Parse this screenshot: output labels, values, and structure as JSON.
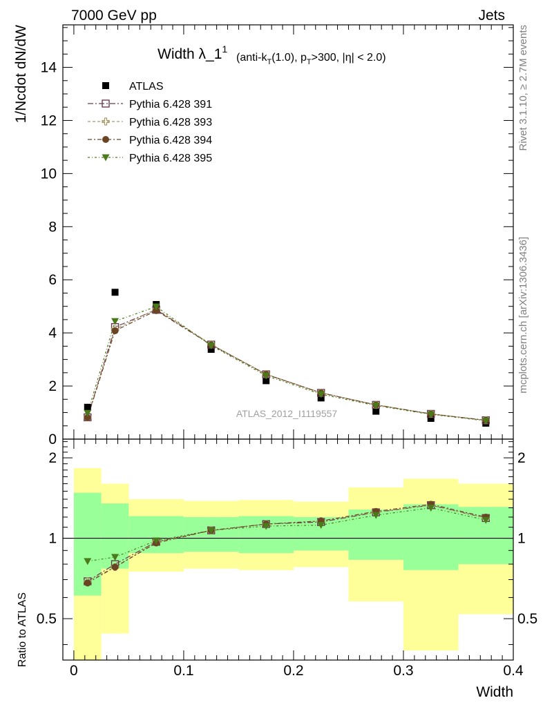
{
  "header": {
    "left": "7000 GeV pp",
    "right": "Jets"
  },
  "plot": {
    "title_main": "Width λ_1",
    "title_sup": "1",
    "title_rest": "(anti-k",
    "title_sub_t": "T",
    "title_rest2": "(1.0), p",
    "title_sub_t2": "T",
    "title_rest3": ">300, |η| < 2.0)",
    "watermark": "ATLAS_2012_I1119557",
    "side_top": "Rivet 3.1.10, ≥ 2.7M events",
    "side_bottom": "mcplots.cern.ch [arXiv:1306.3436]"
  },
  "colors": {
    "atlas": "#000000",
    "p391": "#6b3a4f",
    "p393": "#a89a6a",
    "p394": "#6b4423",
    "p395": "#4a7a1a",
    "band_yellow": "#ffff99",
    "band_green": "#99ff99"
  },
  "chart_data": [
    {
      "type": "scatter",
      "ylabel": "1/Ncdot dN/dW",
      "xlim": [
        -0.01,
        0.4
      ],
      "ylim": [
        0,
        15.6
      ],
      "yticks": [
        0,
        2,
        4,
        6,
        8,
        10,
        12,
        14
      ],
      "ytick_labels": [
        "0",
        "2",
        "4",
        "6",
        "8",
        "10",
        "12",
        "14"
      ],
      "legend_position": "top-left",
      "x": [
        0.0125,
        0.0375,
        0.075,
        0.125,
        0.175,
        0.225,
        0.275,
        0.325,
        0.375
      ],
      "series": [
        {
          "name": "ATLAS",
          "marker": "square-filled",
          "values": [
            1.2,
            5.53,
            5.07,
            3.38,
            2.2,
            1.55,
            1.05,
            0.78,
            0.6
          ]
        },
        {
          "name": "Pythia 6.428 391",
          "marker": "square-open",
          "values": [
            0.82,
            4.22,
            4.87,
            3.56,
            2.44,
            1.74,
            1.29,
            0.95,
            0.71
          ]
        },
        {
          "name": "Pythia 6.428 393",
          "marker": "cross-open",
          "values": [
            0.82,
            4.13,
            4.9,
            3.57,
            2.45,
            1.75,
            1.29,
            0.95,
            0.71
          ]
        },
        {
          "name": "Pythia 6.428 394",
          "marker": "circle-filled",
          "values": [
            0.81,
            4.08,
            4.84,
            3.55,
            2.44,
            1.74,
            1.29,
            0.95,
            0.71
          ]
        },
        {
          "name": "Pythia 6.428 395",
          "marker": "triangle-down-filled",
          "values": [
            0.98,
            4.44,
            4.99,
            3.52,
            2.39,
            1.69,
            1.26,
            0.93,
            0.69
          ]
        }
      ]
    },
    {
      "type": "scatter",
      "xlabel": "Width",
      "ylabel": "Ratio to ATLAS",
      "xlim": [
        -0.01,
        0.4
      ],
      "ylim": [
        0.35,
        2.35
      ],
      "yscale": "log",
      "yticks": [
        0.5,
        1,
        2
      ],
      "ytick_labels": [
        "0.5",
        "1",
        "2"
      ],
      "xticks": [
        0,
        0.1,
        0.2,
        0.3,
        0.4
      ],
      "xtick_labels": [
        "0",
        "0.1",
        "0.2",
        "0.3",
        "0.4"
      ],
      "reference_line": 1,
      "bin_edges": [
        0,
        0.025,
        0.05,
        0.1,
        0.15,
        0.2,
        0.25,
        0.3,
        0.35,
        0.4
      ],
      "yellow_band": {
        "low": [
          0.35,
          0.44,
          0.75,
          0.77,
          0.76,
          0.78,
          0.58,
          0.38,
          0.52
        ],
        "high": [
          1.83,
          1.6,
          1.4,
          1.38,
          1.39,
          1.37,
          1.55,
          1.67,
          1.6
        ]
      },
      "green_band": {
        "low": [
          0.61,
          0.77,
          0.88,
          0.89,
          0.88,
          0.9,
          0.83,
          0.76,
          0.8
        ],
        "high": [
          1.48,
          1.35,
          1.21,
          1.2,
          1.21,
          1.2,
          1.28,
          1.34,
          1.31
        ]
      },
      "x": [
        0.0125,
        0.0375,
        0.075,
        0.125,
        0.175,
        0.225,
        0.275,
        0.325,
        0.375
      ],
      "series": [
        {
          "name": "Pythia 6.428 391",
          "values": [
            0.69,
            0.8,
            0.97,
            1.07,
            1.13,
            1.15,
            1.25,
            1.33,
            1.19
          ]
        },
        {
          "name": "Pythia 6.428 393",
          "values": [
            0.69,
            0.78,
            0.97,
            1.07,
            1.13,
            1.16,
            1.25,
            1.33,
            1.19
          ]
        },
        {
          "name": "Pythia 6.428 394",
          "values": [
            0.68,
            0.78,
            0.96,
            1.07,
            1.13,
            1.16,
            1.26,
            1.34,
            1.2
          ]
        },
        {
          "name": "Pythia 6.428 395",
          "values": [
            0.82,
            0.85,
            0.98,
            1.07,
            1.11,
            1.12,
            1.22,
            1.3,
            1.17
          ]
        }
      ]
    }
  ]
}
